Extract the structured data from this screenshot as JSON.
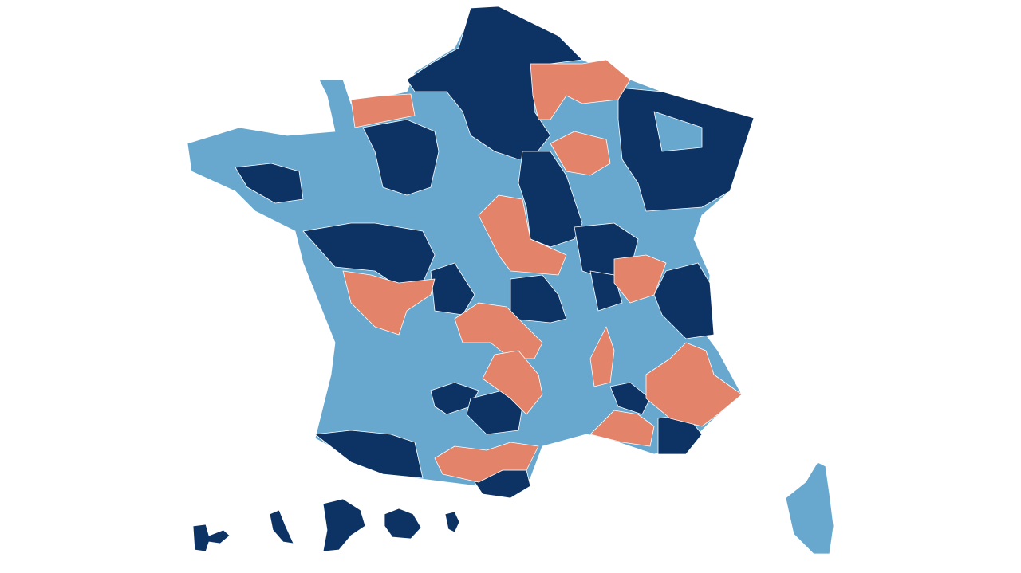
{
  "map": {
    "fills": {
      "dark": "#0c3364",
      "light": "#68a8cf",
      "orange": "#e3836a",
      "border": "#ffffff"
    }
  }
}
